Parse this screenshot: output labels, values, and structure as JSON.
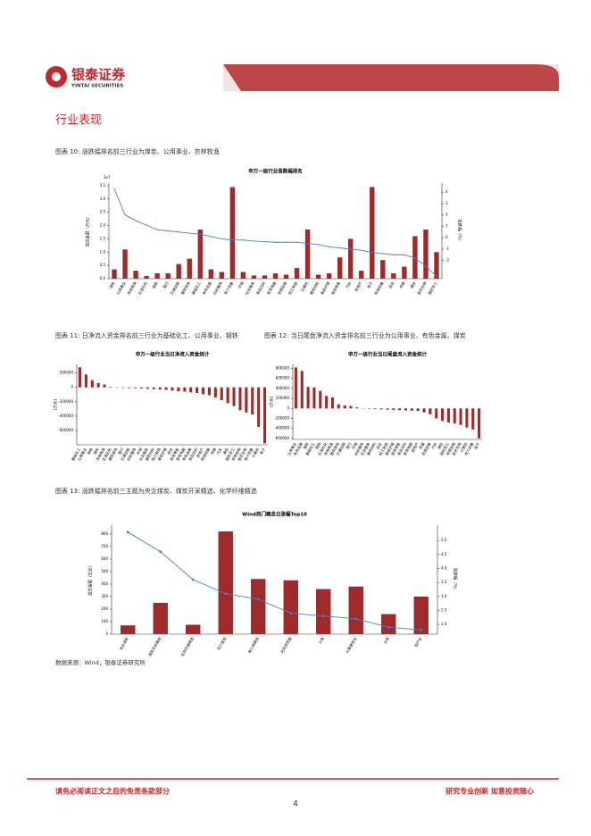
{
  "header": {
    "company": "银泰证券",
    "company_en": "YINTAI SECURITIES"
  },
  "section_title": "行业表现",
  "captions": [
    "图表 10: 涨跌幅排名前三行业为煤炭、公用事业、农林牧渔",
    "图表 11: 日净流入资金排名前三行业为基础化工、公用事业、钢铁",
    "图表 12: 当日尾盘净流入资金排名前三行业为公用事业、有色金属、煤炭",
    "图表 13: 涨跌幅排名前三主题为央企煤炭、煤炭开采精选、化学纤维精选"
  ],
  "source": "数据来源：Wind，银泰证券研究所",
  "footer": {
    "left": "请务必阅读正文之后的免责条款部分",
    "right": "研究专业创新   如意投资随心",
    "page": "4"
  },
  "chart_data": [
    {
      "type": "bar",
      "title": "申万一级行业涨跌幅排名",
      "y_label": "成交金额（万元）",
      "y2_label": "涨跌幅（%）",
      "y_multiplier": "1e7",
      "categories": [
        "煤炭",
        "公用事业",
        "农林牧渔",
        "石油石化",
        "钢铁",
        "银行",
        "交通运输",
        "建筑装饰",
        "基础化工",
        "有色金属",
        "纺织服饰",
        "电力设备",
        "环保",
        "社会服务",
        "食品饮料",
        "家用电器",
        "非银金融",
        "轻工制造",
        "计算机",
        "建筑材料",
        "美容护理",
        "商贸零售",
        "汽车",
        "房地产",
        "电子",
        "机械设备",
        "综合",
        "传媒",
        "通信",
        "医药生物",
        "国防军工"
      ],
      "series": [
        {
          "color": "#9e2a2b",
          "values": [
            0.35,
            1.1,
            0.3,
            0.1,
            0.2,
            0.2,
            0.55,
            0.75,
            1.85,
            0.35,
            0.25,
            3.45,
            0.25,
            0.12,
            0.12,
            0.2,
            0.15,
            0.4,
            1.85,
            0.15,
            0.2,
            0.8,
            1.5,
            0.3,
            3.45,
            0.7,
            0.2,
            0.45,
            1.6,
            1.85,
            1.0
          ]
        },
        {
          "color": "#4a7fc1",
          "axis": "y2",
          "values": [
            4.3,
            2.0,
            1.5,
            1.1,
            0.7,
            0.6,
            0.5,
            0.4,
            0.3,
            0.1,
            -0.1,
            -0.2,
            -0.2,
            -0.3,
            -0.35,
            -0.4,
            -0.4,
            -0.4,
            -0.5,
            -0.6,
            -0.8,
            -0.9,
            -1.0,
            -1.1,
            -1.3,
            -1.4,
            -1.5,
            -1.5,
            -1.8,
            -2.5,
            -3.4
          ]
        }
      ],
      "ylim": [
        0,
        3.6
      ],
      "yticks": [
        {
          "value": 0,
          "label": "0.0"
        },
        {
          "value": 0.5,
          "label": "0.5"
        },
        {
          "value": 1,
          "label": "1.0"
        },
        {
          "value": 1.5,
          "label": "1.5"
        },
        {
          "value": 2,
          "label": "2.0"
        },
        {
          "value": 2.5,
          "label": "2.5"
        },
        {
          "value": 3,
          "label": "3.0"
        },
        {
          "value": 3.5,
          "label": "3.5"
        }
      ],
      "y2lim": [
        -3.6,
        4.8
      ],
      "y2ticks": [
        -2,
        -1,
        0,
        1,
        2,
        3,
        4
      ],
      "markers": false
    },
    {
      "type": "bar",
      "title": "申万一级行业当日净流入资金统计",
      "y_label": "(万元)",
      "categories": [
        "基础化工",
        "公用事业",
        "钢铁",
        "煤炭",
        "农林牧渔",
        "石油石化",
        "建筑装饰",
        "银行",
        "交通运输",
        "纺织服饰",
        "环保",
        "社会服务",
        "建筑材料",
        "轻工制造",
        "美容护理",
        "综合",
        "商贸零售",
        "家用电器",
        "有色金属",
        "食品饮料",
        "房地产",
        "机械设备",
        "传媒",
        "汽车",
        "通信",
        "国防军工",
        "非银金融",
        "医药生物",
        "电力设备",
        "计算机",
        "电子"
      ],
      "series": [
        {
          "color": "#9e2a2b",
          "values": [
            280000,
            180000,
            100000,
            60000,
            40000,
            8000,
            -5000,
            -8000,
            -10000,
            -12000,
            -15000,
            -20000,
            -25000,
            -30000,
            -35000,
            -45000,
            -55000,
            -60000,
            -70000,
            -80000,
            -95000,
            -110000,
            -140000,
            -180000,
            -220000,
            -260000,
            -320000,
            -350000,
            -380000,
            -550000,
            -780000
          ]
        }
      ],
      "ylim": [
        -800000,
        320000
      ],
      "yticks": [
        200000,
        0,
        -200000,
        -400000,
        -600000
      ],
      "markers": false
    },
    {
      "type": "bar",
      "title": "申万一级行业当日尾盘流入资金统计",
      "y_label": "(万元)",
      "categories": [
        "公用事业",
        "有色金属",
        "煤炭",
        "基础化工",
        "钢铁",
        "石油石化",
        "农林牧渔",
        "建筑装饰",
        "交通运输",
        "银行",
        "环保",
        "纺织服饰",
        "社会服务",
        "建筑材料",
        "综合",
        "轻工制造",
        "美容护理",
        "商贸零售",
        "食品饮料",
        "家用电器",
        "房地产",
        "传媒",
        "机械设备",
        "汽车",
        "通信",
        "国防军工",
        "非银金融",
        "医药生物",
        "计算机",
        "电力设备",
        "电子"
      ],
      "series": [
        {
          "color": "#9e2a2b",
          "values": [
            820000,
            750000,
            430000,
            420000,
            350000,
            250000,
            220000,
            80000,
            60000,
            50000,
            20000,
            -5000,
            -10000,
            -15000,
            -20000,
            -25000,
            -30000,
            -35000,
            -40000,
            -45000,
            -50000,
            -80000,
            -120000,
            -200000,
            -250000,
            -280000,
            -300000,
            -330000,
            -380000,
            -420000,
            -600000
          ]
        }
      ],
      "ylim": [
        -620000,
        880000
      ],
      "yticks": [
        800000,
        600000,
        400000,
        200000,
        0,
        -200000,
        -400000,
        -600000
      ],
      "markers": false
    },
    {
      "type": "bar",
      "title": "Wind热门概念日涨幅Top10",
      "y_label": "成交金额（亿元）",
      "y2_label": "涨跌幅（%）",
      "categories": [
        "央企煤炭",
        "煤炭开采精选",
        "化学纤维精选",
        "风力发电",
        "电力用精选",
        "光伏逆变器",
        "火电",
        "大数据安全",
        "水电",
        "铝产业"
      ],
      "series": [
        {
          "color": "#9e2a2b",
          "values": [
            70,
            250,
            75,
            820,
            440,
            430,
            360,
            380,
            160,
            300
          ]
        },
        {
          "color": "#4a7fc1",
          "axis": "y2",
          "values": [
            5.3,
            4.6,
            3.6,
            3.1,
            2.9,
            2.4,
            2.3,
            2.2,
            1.9,
            1.8
          ]
        }
      ],
      "ylim": [
        0,
        870
      ],
      "yticks": [
        0,
        100,
        200,
        300,
        400,
        500,
        600,
        700,
        800
      ],
      "y2lim": [
        1.65,
        5.55
      ],
      "y2ticks": [
        {
          "value": 2,
          "label": "2.0"
        },
        {
          "value": 2.5,
          "label": "2.5"
        },
        {
          "value": 3,
          "label": "3.0"
        },
        {
          "value": 3.5,
          "label": "3.5"
        },
        {
          "value": 4,
          "label": "4.0"
        },
        {
          "value": 4.5,
          "label": "4.5"
        },
        {
          "value": 5,
          "label": "5.0"
        }
      ],
      "markers": true
    }
  ]
}
